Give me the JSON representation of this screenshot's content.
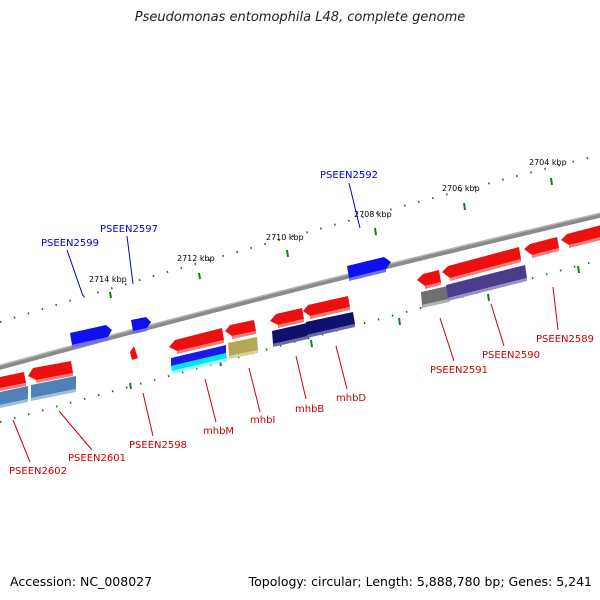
{
  "title": "Pseudomonas entomophila L48, complete genome",
  "footer": {
    "accession": "Accession: NC_008027",
    "summary": "Topology: circular; Length: 5,888,780 bp; Genes: 5,241"
  },
  "colors": {
    "backbone": "#808080",
    "tick": "#1a7a1a",
    "forward_label": "#0000cc",
    "reverse_label": "#cc0000"
  },
  "scale_labels": [
    "2714 kbp",
    "2712 kbp",
    "2710 kbp",
    "2708 kbp",
    "2706 kbp",
    "2704 kbp"
  ],
  "gene_labels": {
    "forward": [
      "PSEEN2599",
      "PSEEN2597",
      "PSEEN2592"
    ],
    "reverse": [
      "PSEEN2602",
      "PSEEN2601",
      "PSEEN2598",
      "mhbM",
      "mhbI",
      "mhbB",
      "mhbD",
      "PSEEN2591",
      "PSEEN2590",
      "PSEEN2589"
    ]
  }
}
